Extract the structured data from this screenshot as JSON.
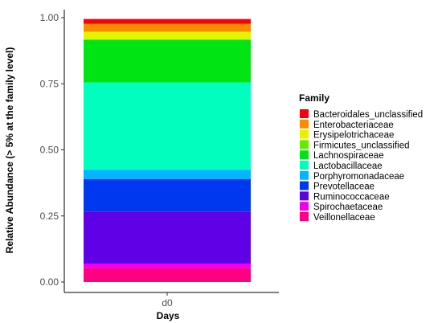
{
  "chart_data": {
    "type": "bar",
    "stacked": true,
    "categories": [
      "d0"
    ],
    "xlabel": "Days",
    "ylabel": "Relative Abundance (> 5% at the family level)",
    "ylim": [
      0,
      1
    ],
    "yticks": [
      "0.00",
      "0.25",
      "0.50",
      "0.75",
      "1.00"
    ],
    "grid": false,
    "legend": {
      "title": "Family",
      "position": "right"
    },
    "series": [
      {
        "name": "Bacteroidales_unclassified",
        "color": "#f8000c",
        "values": [
          0.018
        ]
      },
      {
        "name": "Enterobacteriaceae",
        "color": "#ff8a00",
        "values": [
          0.03
        ]
      },
      {
        "name": "Erysipelotrichaceae",
        "color": "#e6f200",
        "values": [
          0.03
        ]
      },
      {
        "name": "Firmicutes_unclassified",
        "color": "#66ea00",
        "values": [
          0.0
        ]
      },
      {
        "name": "Lachnospiraceae",
        "color": "#00e414",
        "values": [
          0.162
        ]
      },
      {
        "name": "Lactobacillaceae",
        "color": "#00ffbf",
        "values": [
          0.33
        ]
      },
      {
        "name": "Porphyromonadaceae",
        "color": "#00b7ff",
        "values": [
          0.035
        ]
      },
      {
        "name": "Prevotellaceae",
        "color": "#0038ef",
        "values": [
          0.125
        ]
      },
      {
        "name": "Ruminococcaceae",
        "color": "#6000e6",
        "values": [
          0.195
        ]
      },
      {
        "name": "Spirochaetaceae",
        "color": "#ee00ee",
        "values": [
          0.018
        ]
      },
      {
        "name": "Veillonellaceae",
        "color": "#ff0080",
        "values": [
          0.052
        ]
      }
    ]
  }
}
